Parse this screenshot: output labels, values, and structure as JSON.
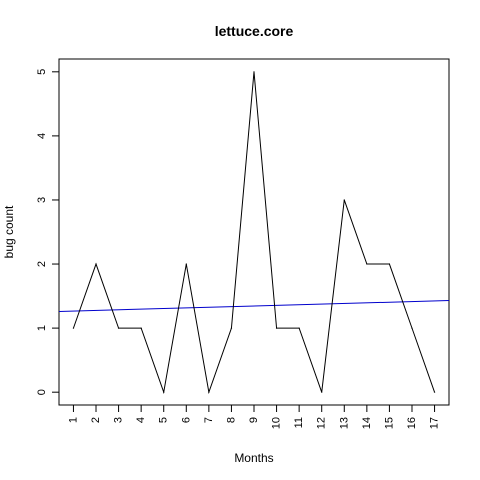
{
  "chart_data": {
    "type": "line",
    "title": "lettuce.core",
    "xlabel": "Months",
    "ylabel": "bug count",
    "x": [
      1,
      2,
      3,
      4,
      5,
      6,
      7,
      8,
      9,
      10,
      11,
      12,
      13,
      14,
      15,
      16,
      17
    ],
    "xticks": [
      "1",
      "2",
      "3",
      "4",
      "5",
      "6",
      "7",
      "8",
      "9",
      "10",
      "11",
      "12",
      "13",
      "14",
      "15",
      "16",
      "17"
    ],
    "yticks": [
      "0",
      "1",
      "2",
      "3",
      "4",
      "5"
    ],
    "xlim": [
      0.36,
      17.64
    ],
    "ylim": [
      -0.2,
      5.2
    ],
    "series": [
      {
        "color": "#000000",
        "values": [
          1,
          2,
          1,
          1,
          0,
          2,
          0,
          1,
          5,
          1,
          1,
          0,
          3,
          2,
          2,
          1,
          0
        ]
      }
    ],
    "trend_line": {
      "color": "#0000cc",
      "points": [
        [
          0.36,
          1.26
        ],
        [
          17.64,
          1.43
        ]
      ]
    },
    "grid": false,
    "legend": "none"
  }
}
